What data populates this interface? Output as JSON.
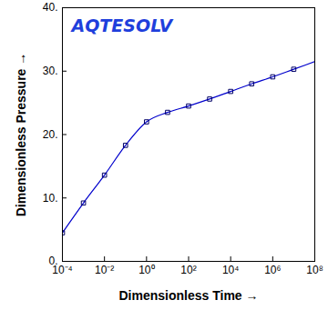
{
  "chart_data": {
    "type": "line",
    "xlabel": "Dimensionless Time",
    "ylabel": "Dimensionless Pressure",
    "annotations": [
      "AQTESOLV"
    ],
    "log": "x",
    "x": [
      0.0001,
      0.001,
      0.01,
      0.1,
      1,
      10,
      100,
      1000,
      10000,
      100000,
      1000000,
      10000000,
      100000000
    ],
    "series": [
      {
        "type": "line",
        "line_style": "solid",
        "color": "#0000cc",
        "values": [
          4.5,
          9.2,
          13.6,
          18.3,
          22.0,
          23.5,
          24.5,
          25.6,
          26.8,
          28.0,
          29.1,
          30.3,
          31.5
        ]
      },
      {
        "type": "scatter",
        "marker": "square",
        "color": "#000066",
        "values": [
          4.5,
          9.2,
          13.6,
          18.3,
          22.0,
          23.5,
          24.5,
          25.6,
          26.8,
          28.0,
          29.1,
          30.3,
          null
        ]
      }
    ],
    "xlim": [
      0.0001,
      100000000
    ],
    "xticks": [
      {
        "value": 0.0001,
        "label": "10⁻⁴"
      },
      {
        "value": 0.01,
        "label": "10⁻²"
      },
      {
        "value": 1,
        "label": "10⁰"
      },
      {
        "value": 100,
        "label": "10²"
      },
      {
        "value": 10000,
        "label": "10⁴"
      },
      {
        "value": 1000000,
        "label": "10⁶"
      },
      {
        "value": 100000000,
        "label": "10⁸"
      }
    ],
    "ylim": [
      0,
      40
    ],
    "yticks": [
      {
        "value": 0,
        "label": "0."
      },
      {
        "value": 10,
        "label": "10."
      },
      {
        "value": 20,
        "label": "20."
      },
      {
        "value": 30,
        "label": "30."
      },
      {
        "value": 40,
        "label": "40."
      }
    ],
    "grid": false
  }
}
